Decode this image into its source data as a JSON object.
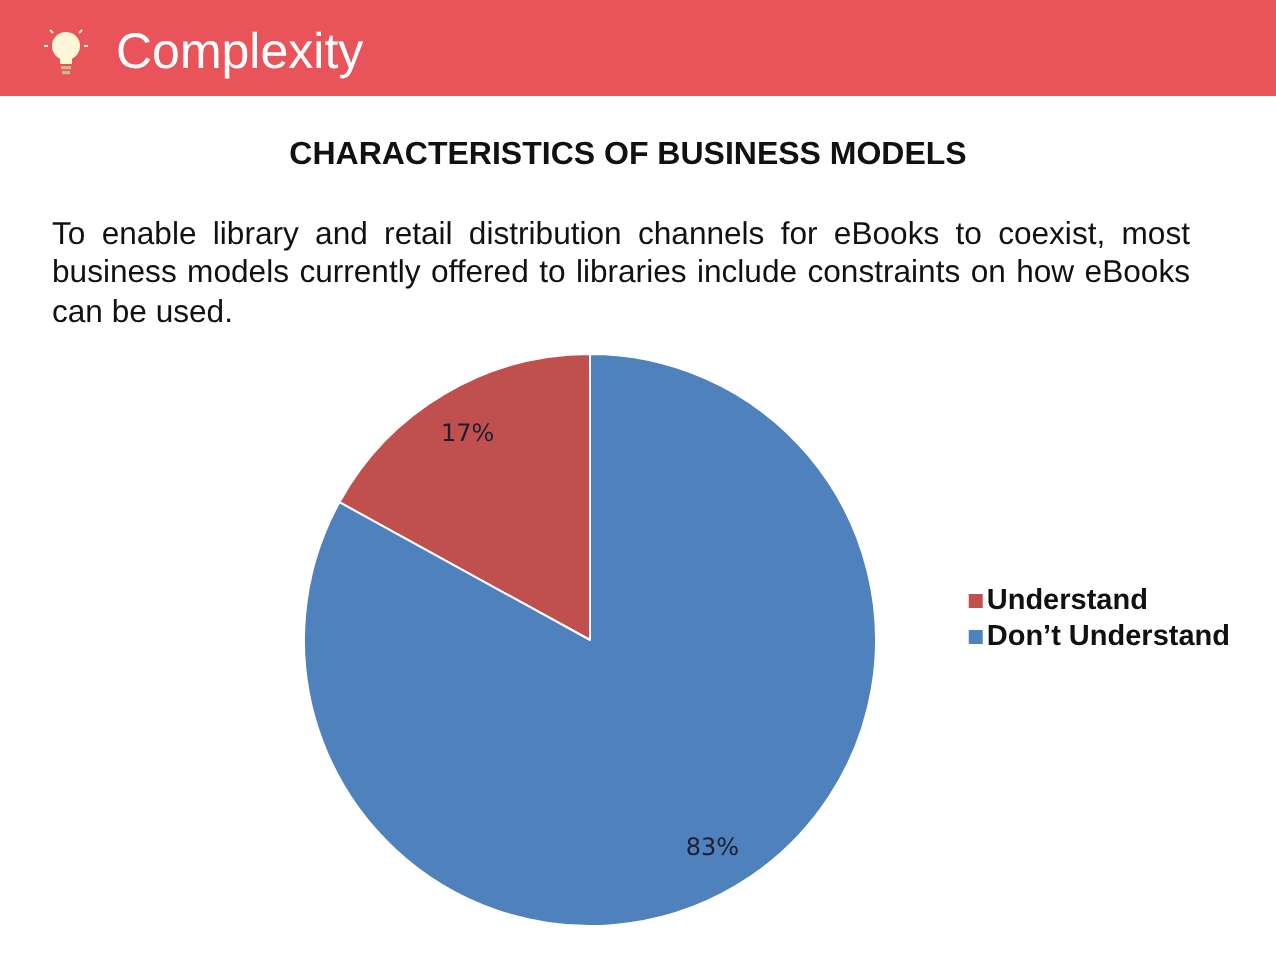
{
  "chart_data": {
    "type": "pie",
    "title": "Complexity",
    "subtitle": "CHARACTERISTICS OF BUSINESS MODELS",
    "annotations": [
      "To enable library and retail distribution channels for eBooks to coexist, most business models currently offered to libraries include constraints on how eBooks can be used."
    ],
    "categories": [
      "Understand",
      "Don’t Understand"
    ],
    "values": [
      17,
      83
    ],
    "colors": [
      "#c0504d",
      "#4f81bd"
    ],
    "value_labels": [
      "17%",
      "83%"
    ],
    "legend": "right"
  }
}
